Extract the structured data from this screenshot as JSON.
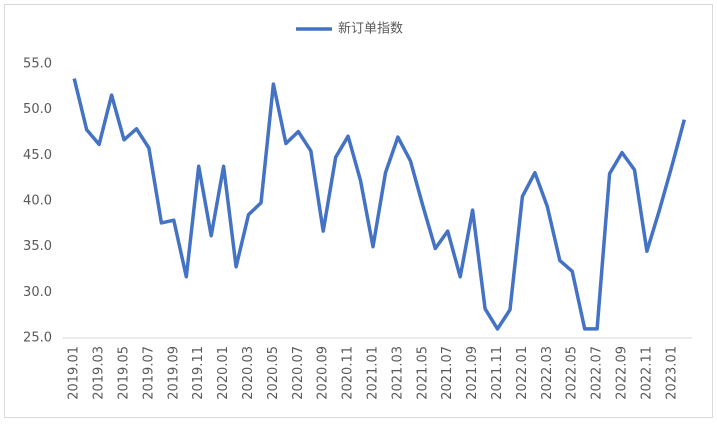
{
  "chart_data": {
    "type": "line",
    "categories": [
      "2019.01",
      null,
      "2019.03",
      null,
      "2019.05",
      null,
      "2019.07",
      null,
      "2019.09",
      null,
      "2019.11",
      null,
      "2020.01",
      null,
      "2020.03",
      null,
      "2020.05",
      null,
      "2020.07",
      null,
      "2020.09",
      null,
      "2020.11",
      null,
      "2021.01",
      null,
      "2021.03",
      null,
      "2021.05",
      null,
      "2021.07",
      null,
      "2021.09",
      null,
      "2021.11",
      null,
      "2022.01",
      null,
      "2022.03",
      null,
      "2022.05",
      null,
      "2022.07",
      null,
      "2022.09",
      null,
      "2022.11",
      null,
      "2023.01",
      null
    ],
    "series": [
      {
        "name": "新订单指数",
        "color": "#4472c4",
        "values": [
          53.4,
          47.8,
          46.2,
          51.6,
          46.7,
          47.9,
          45.8,
          37.6,
          37.9,
          31.7,
          43.8,
          36.2,
          43.8,
          32.8,
          38.5,
          39.8,
          52.8,
          46.3,
          47.6,
          45.5,
          36.7,
          44.8,
          47.1,
          42.2,
          35.0,
          43.1,
          47.0,
          44.4,
          39.5,
          34.8,
          36.7,
          31.7,
          39.0,
          28.2,
          26.0,
          28.1,
          40.5,
          43.1,
          39.4,
          33.5,
          32.3,
          26.0,
          26.0,
          43.0,
          45.3,
          43.4,
          34.5,
          39.0,
          43.8,
          48.9
        ]
      }
    ],
    "ylim": [
      25,
      55
    ],
    "yticks": [
      {
        "value": 25,
        "label": "25.0"
      },
      {
        "value": 30,
        "label": "30.0"
      },
      {
        "value": 35,
        "label": "35.0"
      },
      {
        "value": 40,
        "label": "40.0"
      },
      {
        "value": 45,
        "label": "45.0"
      },
      {
        "value": 50,
        "label": "50.0"
      },
      {
        "value": 55,
        "label": "55.0"
      }
    ],
    "grid": false,
    "legend": "top"
  }
}
